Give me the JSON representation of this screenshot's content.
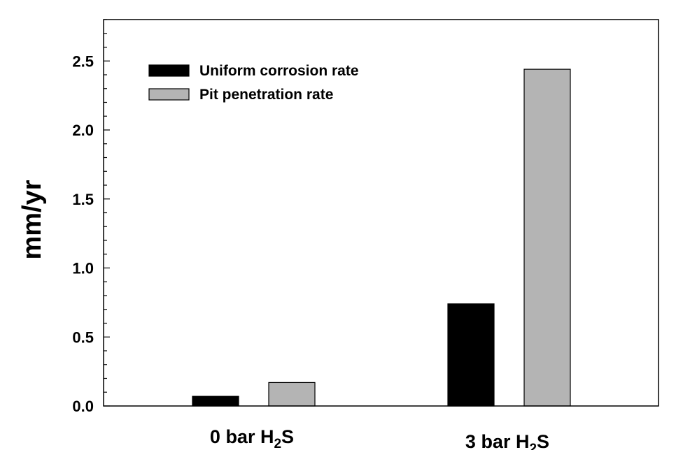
{
  "chart_data": {
    "type": "bar",
    "title": "",
    "xlabel": "",
    "ylabel": "mm/yr",
    "ylim": [
      0,
      2.8
    ],
    "yticks": [
      0.0,
      0.5,
      1.0,
      1.5,
      2.0,
      2.5
    ],
    "ytick_labels": [
      "0.0",
      "0.5",
      "1.0",
      "1.5",
      "2.0",
      "2.5"
    ],
    "categories": [
      {
        "main": "0 bar H",
        "sub": "2",
        "tail": "S"
      },
      {
        "main": "3 bar H",
        "sub": "2",
        "tail": "S"
      }
    ],
    "series": [
      {
        "name": "Uniform corrosion rate",
        "color": "#000000",
        "values": [
          0.07,
          0.74
        ]
      },
      {
        "name": "Pit penetration rate",
        "color": "#b4b4b4",
        "values": [
          0.17,
          2.44
        ]
      }
    ],
    "legend": "top-left",
    "grid": false
  }
}
